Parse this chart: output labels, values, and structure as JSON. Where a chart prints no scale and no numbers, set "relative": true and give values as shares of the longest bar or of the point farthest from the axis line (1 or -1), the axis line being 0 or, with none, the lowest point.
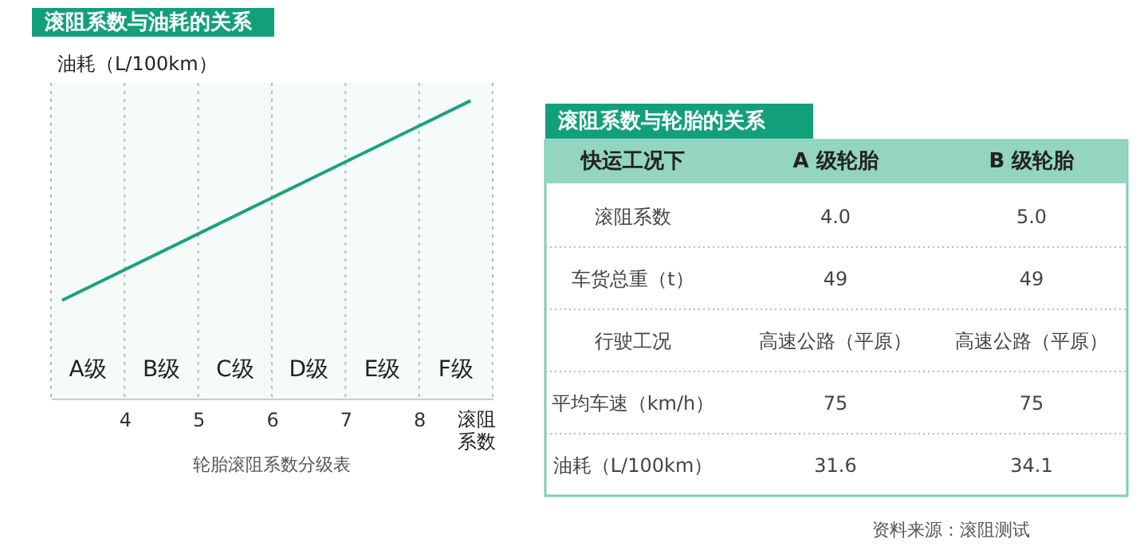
{
  "chart_data": [
    {
      "type": "line",
      "title": "滚阻系数与油耗的关系",
      "ylabel": "油耗（L/100km）",
      "xlabel": "滚阻系数",
      "annotations": [
        "轮胎滚阻系数分级表"
      ],
      "relative": true,
      "x": [
        3.15,
        8.7
      ],
      "values": [
        0.33,
        1
      ],
      "color": "#1aa37a",
      "xlim": [
        3,
        9
      ],
      "xticks": [
        4,
        5,
        6,
        7,
        8
      ],
      "grid": "x",
      "bands": [
        {
          "axis": "x",
          "from": 3,
          "to": 4,
          "label": "A级"
        },
        {
          "axis": "x",
          "from": 4,
          "to": 5,
          "label": "B级"
        },
        {
          "axis": "x",
          "from": 5,
          "to": 6,
          "label": "C级"
        },
        {
          "axis": "x",
          "from": 6,
          "to": 7,
          "label": "D级"
        },
        {
          "axis": "x",
          "from": 7,
          "to": 8,
          "label": "E级"
        },
        {
          "axis": "x",
          "from": 8,
          "to": 9,
          "label": "F级"
        }
      ]
    },
    {
      "type": "other",
      "title": "滚阻系数与轮胎的关系",
      "annotations": [
        "快运工况下",
        "A 级轮胎",
        "B 级轮胎",
        "滚阻系数",
        "4.0",
        "5.0",
        "车货总重（t）",
        "49",
        "49",
        "行驶工况",
        "高速公路（平原）",
        "高速公路（平原）",
        "平均车速（km/h）",
        "75",
        "75",
        "油耗（L/100km）",
        "31.6",
        "34.1",
        "资料来源：滚阻测试"
      ]
    }
  ]
}
